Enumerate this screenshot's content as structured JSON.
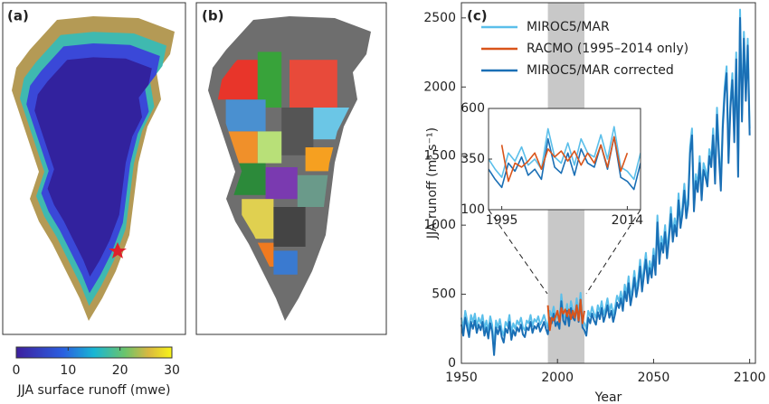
{
  "panel_labels": [
    "(a)",
    "(b)"
  ],
  "colorbar": {
    "label": "JJA surface runoff (mwe)",
    "ticks": [
      0,
      10,
      20,
      30
    ],
    "lim": [
      0,
      30
    ]
  },
  "chart_data": {
    "type": "line",
    "panel_label": "(c)",
    "x_label": "Year",
    "y_label": "JJA runoff (m³ s⁻¹)",
    "x": [
      1950,
      1951,
      1952,
      1953,
      1954,
      1955,
      1956,
      1957,
      1958,
      1959,
      1960,
      1961,
      1962,
      1963,
      1964,
      1965,
      1966,
      1967,
      1968,
      1969,
      1970,
      1971,
      1972,
      1973,
      1974,
      1975,
      1976,
      1977,
      1978,
      1979,
      1980,
      1981,
      1982,
      1983,
      1984,
      1985,
      1986,
      1987,
      1988,
      1989,
      1990,
      1991,
      1992,
      1993,
      1994,
      1995,
      1996,
      1997,
      1998,
      1999,
      2000,
      2001,
      2002,
      2003,
      2004,
      2005,
      2006,
      2007,
      2008,
      2009,
      2010,
      2011,
      2012,
      2013,
      2014,
      2015,
      2016,
      2017,
      2018,
      2019,
      2020,
      2021,
      2022,
      2023,
      2024,
      2025,
      2026,
      2027,
      2028,
      2029,
      2030,
      2031,
      2032,
      2033,
      2034,
      2035,
      2036,
      2037,
      2038,
      2039,
      2040,
      2041,
      2042,
      2043,
      2044,
      2045,
      2046,
      2047,
      2048,
      2049,
      2050,
      2051,
      2052,
      2053,
      2054,
      2055,
      2056,
      2057,
      2058,
      2059,
      2060,
      2061,
      2062,
      2063,
      2064,
      2065,
      2066,
      2067,
      2068,
      2069,
      2070,
      2071,
      2072,
      2073,
      2074,
      2075,
      2076,
      2077,
      2078,
      2079,
      2080,
      2081,
      2082,
      2083,
      2084,
      2085,
      2086,
      2087,
      2088,
      2089,
      2090,
      2091,
      2092,
      2093,
      2094,
      2095,
      2096,
      2097,
      2098,
      2099,
      2100
    ],
    "series": [
      {
        "name": "MIROC5/MAR",
        "color": "#5bbfea",
        "values": [
          330,
          250,
          380,
          310,
          240,
          350,
          300,
          360,
          270,
          330,
          290,
          350,
          250,
          310,
          230,
          340,
          280,
          110,
          310,
          260,
          320,
          240,
          200,
          300,
          270,
          350,
          220,
          290,
          250,
          310,
          280,
          330,
          260,
          240,
          310,
          290,
          350,
          270,
          320,
          300,
          340,
          280,
          310,
          350,
          300,
          260,
          380,
          340,
          410,
          320,
          350,
          300,
          500,
          360,
          330,
          430,
          320,
          450,
          380,
          360,
          470,
          350,
          510,
          310,
          290,
          250,
          380,
          340,
          410,
          360,
          330,
          420,
          370,
          450,
          350,
          400,
          470,
          380,
          430,
          350,
          410,
          490,
          450,
          520,
          430,
          570,
          500,
          630,
          470,
          550,
          670,
          530,
          610,
          750,
          570,
          690,
          800,
          630,
          740,
          670,
          830,
          690,
          1070,
          770,
          920,
          850,
          1000,
          810,
          950,
          1130,
          930,
          1050,
          970,
          1230,
          1030,
          1130,
          1300,
          1100,
          1200,
          1570,
          1700,
          1150,
          1370,
          1290,
          1500,
          1230,
          1450,
          1400,
          1330,
          1550,
          1470,
          1700,
          1350,
          1850,
          1550,
          1300,
          1750,
          2000,
          2150,
          1500,
          1900,
          2100,
          1650,
          2250,
          1400,
          2560,
          1800,
          2400,
          1950,
          2350,
          1700
        ]
      },
      {
        "name": "RACMO (1995–2014 only)",
        "color": "#d9541a",
        "x": [
          1995,
          1996,
          1997,
          1998,
          1999,
          2000,
          2001,
          2002,
          2003,
          2004,
          2005,
          2006,
          2007,
          2008,
          2009,
          2010,
          2011,
          2012,
          2013,
          2014
        ],
        "values": [
          420,
          240,
          330,
          310,
          340,
          380,
          300,
          400,
          360,
          390,
          340,
          390,
          320,
          380,
          330,
          420,
          310,
          460,
          290,
          380
        ]
      },
      {
        "name": "MIROC5/MAR corrected",
        "color": "#1a6fb5",
        "values": [
          280,
          200,
          330,
          260,
          190,
          300,
          250,
          310,
          220,
          280,
          240,
          300,
          200,
          260,
          180,
          290,
          230,
          60,
          260,
          210,
          270,
          190,
          150,
          250,
          220,
          300,
          170,
          240,
          200,
          260,
          230,
          280,
          210,
          190,
          260,
          240,
          300,
          220,
          270,
          250,
          290,
          230,
          260,
          300,
          250,
          210,
          330,
          290,
          360,
          270,
          300,
          250,
          450,
          310,
          280,
          380,
          270,
          400,
          330,
          310,
          420,
          300,
          460,
          260,
          240,
          200,
          330,
          290,
          360,
          310,
          280,
          370,
          320,
          400,
          300,
          350,
          420,
          330,
          380,
          300,
          360,
          440,
          400,
          470,
          380,
          520,
          450,
          580,
          420,
          500,
          620,
          480,
          560,
          700,
          520,
          640,
          750,
          580,
          690,
          620,
          780,
          640,
          1020,
          720,
          870,
          800,
          950,
          760,
          900,
          1080,
          880,
          1000,
          920,
          1180,
          980,
          1080,
          1250,
          1050,
          1150,
          1520,
          1650,
          1100,
          1320,
          1240,
          1450,
          1180,
          1400,
          1350,
          1280,
          1500,
          1420,
          1650,
          1300,
          1800,
          1500,
          1250,
          1700,
          1950,
          2100,
          1450,
          1850,
          2050,
          1600,
          2200,
          1350,
          2500,
          1750,
          2350,
          1900,
          2300,
          1650
        ]
      }
    ],
    "xlim": [
      1950,
      2103
    ],
    "ylim": [
      0,
      2610
    ],
    "xticks": [
      1950,
      2000,
      2050,
      2100
    ],
    "yticks": [
      0,
      500,
      1000,
      1500,
      2000,
      2500
    ],
    "shaded_range": [
      1995,
      2014
    ],
    "shade_color": "#c8c8c8",
    "legend": "upper left",
    "inset": {
      "xlim": [
        1993,
        2016
      ],
      "ylim": [
        100,
        600
      ],
      "xticks": [
        1995,
        2014
      ],
      "yticks": [
        100,
        350,
        600
      ]
    }
  }
}
